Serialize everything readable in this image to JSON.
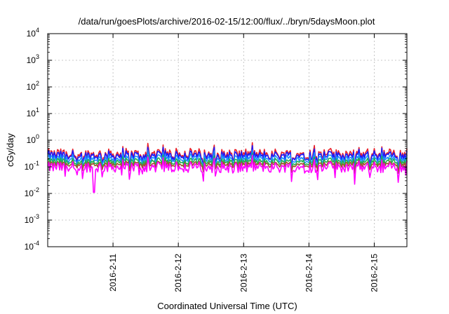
{
  "chart_data": {
    "type": "line",
    "title": "/data/run/goesPlots/archive/2016-02-15/12:00/flux/../bryn/5daysMoon.plot",
    "xlabel": "Coordinated Universal Time (UTC)",
    "ylabel": "cGy/day",
    "yscale": "log",
    "ylim": [
      0.0001,
      10000
    ],
    "xlim": [
      "2016-02-10T00:00",
      "2016-02-15T12:00"
    ],
    "grid": true,
    "y_ticks": [
      {
        "base": "10",
        "exp": "-4"
      },
      {
        "base": "10",
        "exp": "-3"
      },
      {
        "base": "10",
        "exp": "-2"
      },
      {
        "base": "10",
        "exp": "-1"
      },
      {
        "base": "10",
        "exp": "0"
      },
      {
        "base": "10",
        "exp": "1"
      },
      {
        "base": "10",
        "exp": "2"
      },
      {
        "base": "10",
        "exp": "3"
      },
      {
        "base": "10",
        "exp": "4"
      }
    ],
    "x_ticks": [
      "2016-2-11",
      "2016-2-12",
      "2016-2-13",
      "2016-2-14",
      "2016-2-15"
    ],
    "series": [
      {
        "color": "#e8202a",
        "level": 0.3,
        "spread": 0.09
      },
      {
        "color": "#1a1aff",
        "level": 0.26,
        "spread": 0.08
      },
      {
        "color": "#1e90ff",
        "level": 0.2,
        "spread": 0.07
      },
      {
        "color": "#20b050",
        "level": 0.155,
        "spread": 0.06
      },
      {
        "color": "#a0522d",
        "level": 0.125,
        "spread": 0.05
      },
      {
        "color": "#ff00ff",
        "level": 0.095,
        "spread": 0.09,
        "dip": {
          "x": "2016-02-10T17:00",
          "value": 0.011
        }
      }
    ]
  }
}
